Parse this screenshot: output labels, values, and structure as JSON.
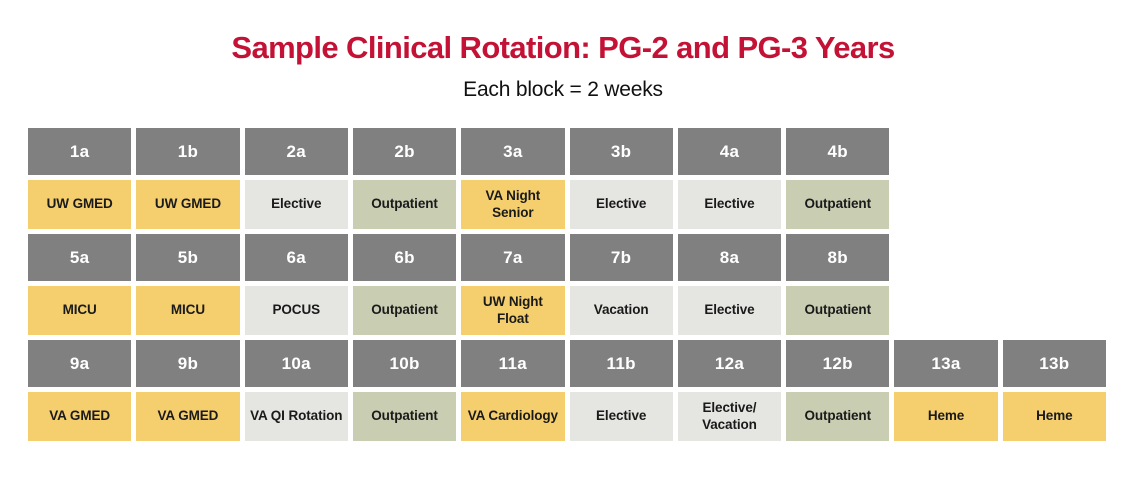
{
  "title": "Sample Clinical Rotation: PG-2 and PG-3 Years",
  "subtitle": "Each block = 2 weeks",
  "colors": {
    "title_text": "#C31235",
    "subtitle_text": "#111111",
    "header_bg": "#808080",
    "header_text": "#FFFFFF",
    "cell_text": "#1A1A1A",
    "yellow": "#F5CF6E",
    "gray": "#E5E5E1",
    "sage": "#C9CDB2"
  },
  "chart_data": {
    "type": "table",
    "title": "Sample Clinical Rotation: PG-2 and PG-3 Years",
    "subtitle": "Each block = 2 weeks",
    "block_duration": "Each block = 2 weeks",
    "row_groups": [
      {
        "blocks": [
          "1a",
          "1b",
          "2a",
          "2b",
          "3a",
          "3b",
          "4a",
          "4b"
        ],
        "rotations": [
          {
            "label": "UW GMED",
            "category": "yellow"
          },
          {
            "label": "UW GMED",
            "category": "yellow"
          },
          {
            "label": "Elective",
            "category": "gray"
          },
          {
            "label": "Outpatient",
            "category": "sage"
          },
          {
            "label": "VA Night Senior",
            "category": "yellow"
          },
          {
            "label": "Elective",
            "category": "gray"
          },
          {
            "label": "Elective",
            "category": "gray"
          },
          {
            "label": "Outpatient",
            "category": "sage"
          }
        ]
      },
      {
        "blocks": [
          "5a",
          "5b",
          "6a",
          "6b",
          "7a",
          "7b",
          "8a",
          "8b"
        ],
        "rotations": [
          {
            "label": "MICU",
            "category": "yellow"
          },
          {
            "label": "MICU",
            "category": "yellow"
          },
          {
            "label": "POCUS",
            "category": "gray"
          },
          {
            "label": "Outpatient",
            "category": "sage"
          },
          {
            "label": "UW Night Float",
            "category": "yellow"
          },
          {
            "label": "Vacation",
            "category": "gray"
          },
          {
            "label": "Elective",
            "category": "gray"
          },
          {
            "label": "Outpatient",
            "category": "sage"
          }
        ]
      },
      {
        "blocks": [
          "9a",
          "9b",
          "10a",
          "10b",
          "11a",
          "11b",
          "12a",
          "12b",
          "13a",
          "13b"
        ],
        "rotations": [
          {
            "label": "VA GMED",
            "category": "yellow"
          },
          {
            "label": "VA GMED",
            "category": "yellow"
          },
          {
            "label": "VA QI Rotation",
            "category": "gray"
          },
          {
            "label": "Outpatient",
            "category": "sage"
          },
          {
            "label": "VA Cardiology",
            "category": "yellow"
          },
          {
            "label": "Elective",
            "category": "gray"
          },
          {
            "label": "Elective/Vacation",
            "category": "gray"
          },
          {
            "label": "Outpatient",
            "category": "sage"
          },
          {
            "label": "Heme",
            "category": "yellow"
          },
          {
            "label": "Heme",
            "category": "yellow"
          }
        ]
      }
    ],
    "columns_per_group": [
      8,
      8,
      10
    ],
    "layout": {
      "grid_columns": 10,
      "legend": "none",
      "gridlines": "white gaps between cells"
    }
  }
}
